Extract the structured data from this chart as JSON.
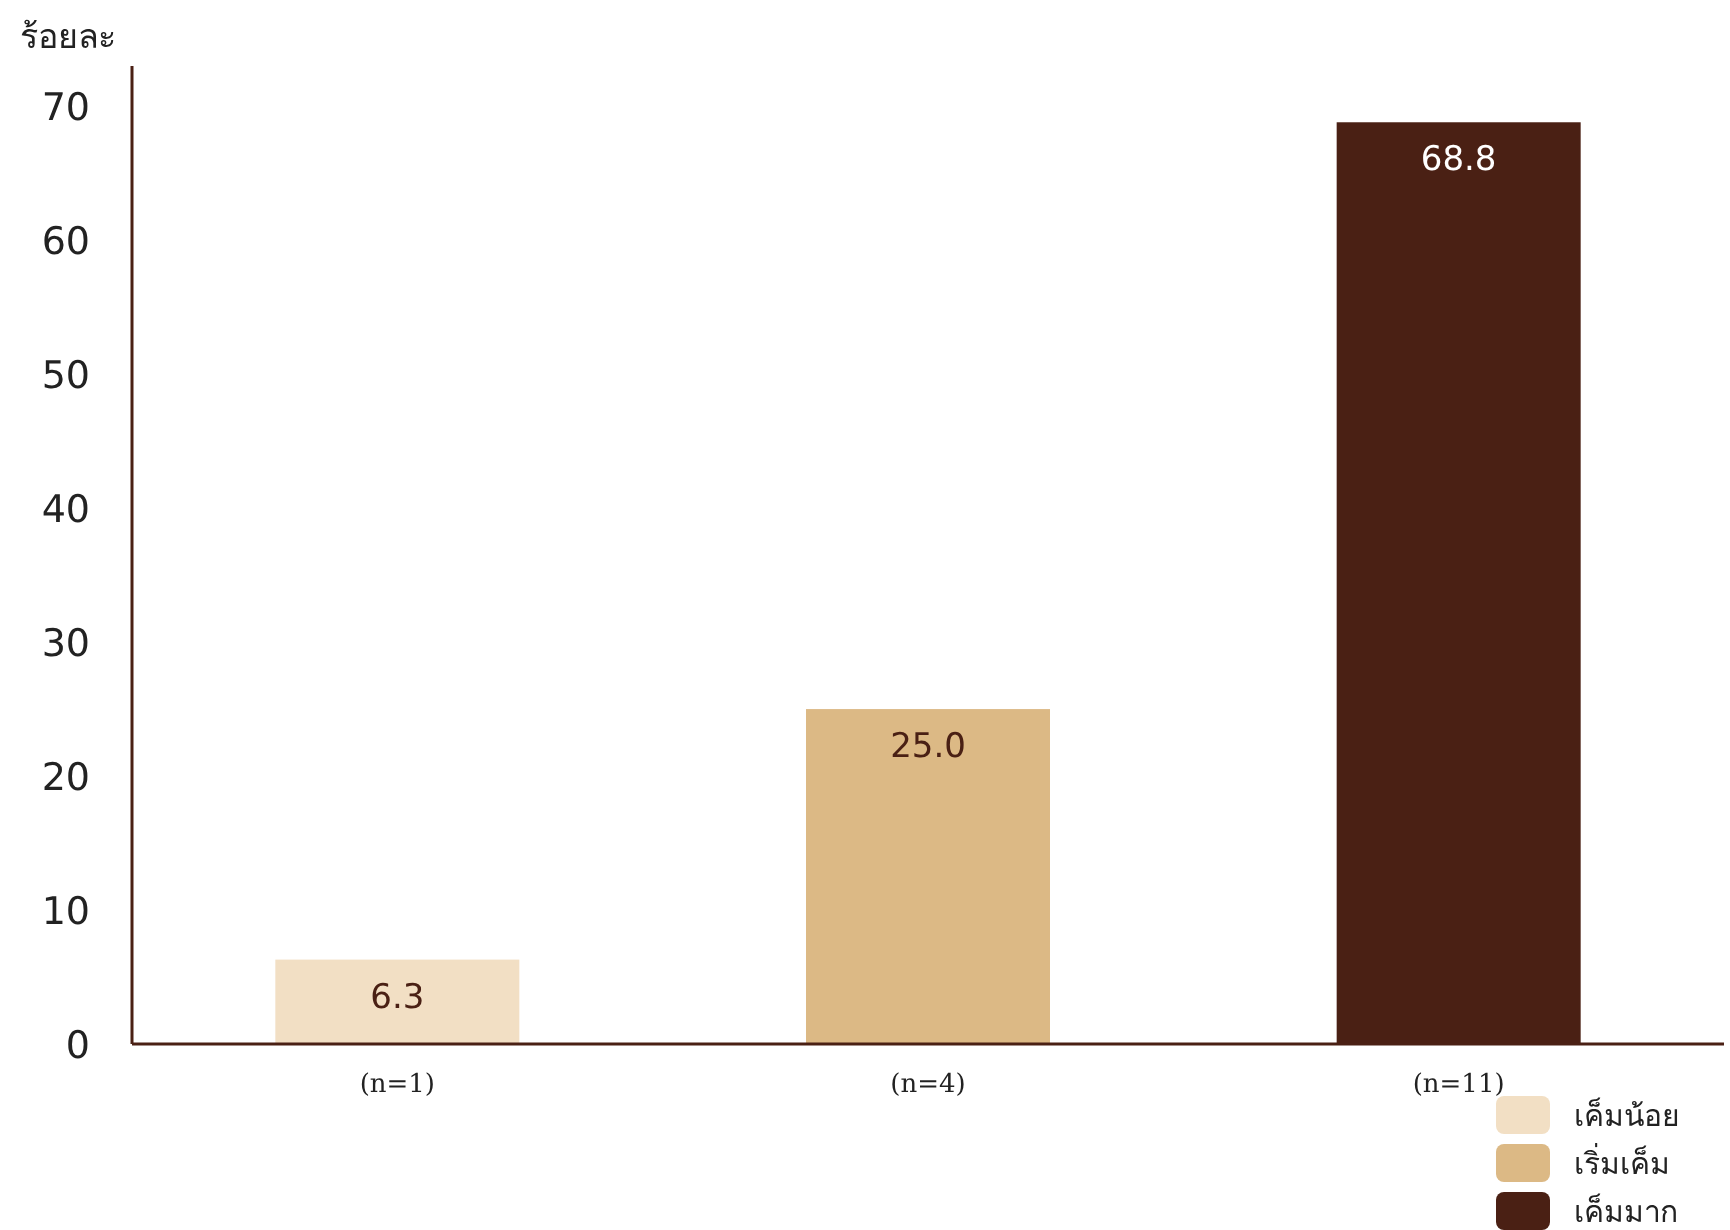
{
  "chart_data": {
    "type": "bar",
    "ylabel": "ร้อยละ",
    "categories": [
      "(n=1)",
      "(n=4)",
      "(n=11)"
    ],
    "series": [
      {
        "name": "เค็มน้อย",
        "color": "#f2dfc4",
        "values": [
          6.3,
          null,
          null
        ],
        "value_labels": [
          "6.3",
          null,
          null
        ]
      },
      {
        "name": "เริ่มเค็ม",
        "color": "#dcb985",
        "values": [
          null,
          25.0,
          null
        ],
        "value_labels": [
          null,
          "25.0",
          null
        ]
      },
      {
        "name": "เค็มมาก",
        "color": "#4a2014",
        "values": [
          null,
          null,
          68.8
        ],
        "value_labels": [
          null,
          null,
          "68.8"
        ]
      }
    ],
    "ylim": [
      0,
      73
    ],
    "yticks": [
      0,
      10,
      20,
      30,
      40,
      50,
      60,
      70
    ],
    "legend": "bottom right",
    "grid": false
  }
}
